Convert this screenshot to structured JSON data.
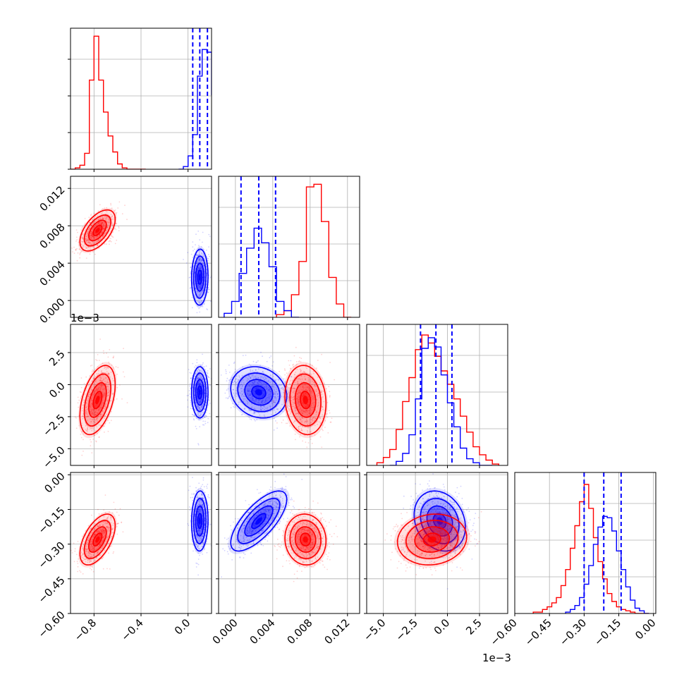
{
  "chart_data": {
    "type": "corner",
    "grid": true,
    "colors": {
      "series_a": "#ff0000",
      "series_b": "#0000ff"
    },
    "params": [
      {
        "range": [
          -1.0,
          0.2
        ],
        "ticks": [
          -0.8,
          -0.4,
          0.0
        ],
        "tick_labels": [
          "−0.8",
          "−0.4",
          "0.0"
        ],
        "scale_label": ""
      },
      {
        "range": [
          -0.0018,
          0.0133
        ],
        "ticks": [
          0.0,
          0.004,
          0.008,
          0.012
        ],
        "tick_labels": [
          "0.000",
          "0.004",
          "0.008",
          "0.012"
        ],
        "scale_label": ""
      },
      {
        "range": [
          -6.3,
          4.7
        ],
        "ticks": [
          -5.0,
          -2.5,
          0.0,
          2.5
        ],
        "tick_labels": [
          "−5.0",
          "−2.5",
          "0.0",
          "2.5"
        ],
        "scale_label": "1e−3"
      },
      {
        "range": [
          -0.6,
          0.01
        ],
        "ticks": [
          -0.6,
          -0.45,
          -0.3,
          -0.15,
          0.0
        ],
        "tick_labels": [
          "−0.60",
          "−0.45",
          "−0.30",
          "−0.15",
          "0.00"
        ],
        "scale_label": ""
      }
    ],
    "marginals": [
      {
        "hist_max": 1.0,
        "series_a": {
          "bins": [
            -1.0,
            -0.96,
            -0.92,
            -0.88,
            -0.84,
            -0.8,
            -0.76,
            -0.72,
            -0.68,
            -0.64,
            -0.6,
            -0.56,
            -0.52,
            -0.48,
            -0.44,
            -0.4,
            -0.36
          ],
          "counts": [
            0.0,
            0.01,
            0.03,
            0.12,
            0.67,
            1.0,
            0.67,
            0.43,
            0.25,
            0.13,
            0.04,
            0.01,
            0.0,
            0.0,
            0.0,
            0.0
          ]
        },
        "series_b": {
          "bins": [
            -0.08,
            -0.04,
            0.0,
            0.04,
            0.08,
            0.12,
            0.16,
            0.2,
            0.24,
            0.28
          ],
          "counts": [
            0.0,
            0.02,
            0.1,
            0.26,
            0.7,
            0.9,
            0.88,
            0.56,
            0.0
          ]
        },
        "quantiles_b": [
          0.04,
          0.1,
          0.165
        ]
      },
      {
        "hist_max": 1.0,
        "series_a": {
          "bins": [
            0.0044,
            0.0052,
            0.006,
            0.0068,
            0.0076,
            0.0084,
            0.0092,
            0.01,
            0.0108,
            0.0116,
            0.0124
          ],
          "counts": [
            0.02,
            0.05,
            0.17,
            0.42,
            0.98,
            1.0,
            0.72,
            0.3,
            0.1,
            0.0
          ]
        },
        "series_b": {
          "bins": [
            -0.0012,
            -0.0004,
            0.0004,
            0.0012,
            0.002,
            0.0028,
            0.0036,
            0.0044,
            0.0052,
            0.006,
            0.0068
          ],
          "counts": [
            0.03,
            0.12,
            0.33,
            0.52,
            0.67,
            0.56,
            0.38,
            0.12,
            0.05,
            0.0
          ]
        },
        "quantiles_b": [
          0.0006,
          0.0025,
          0.0043
        ]
      },
      {
        "hist_max": 1.0,
        "series_a": {
          "bins": [
            -5.5,
            -5.0,
            -4.5,
            -4.0,
            -3.5,
            -3.0,
            -2.5,
            -2.0,
            -1.5,
            -1.0,
            -0.5,
            0.0,
            0.5,
            1.0,
            1.5,
            2.0,
            2.5,
            3.0,
            3.5,
            4.0
          ],
          "counts": [
            0.02,
            0.06,
            0.12,
            0.27,
            0.48,
            0.66,
            0.87,
            0.98,
            0.92,
            0.82,
            0.71,
            0.61,
            0.5,
            0.37,
            0.25,
            0.14,
            0.08,
            0.04,
            0.01
          ]
        },
        "series_b": {
          "bins": [
            -4.5,
            -4.0,
            -3.5,
            -3.0,
            -2.5,
            -2.0,
            -1.5,
            -1.0,
            -0.5,
            0.0,
            0.5,
            1.0,
            1.5,
            2.0,
            2.5,
            3.0,
            3.5
          ],
          "counts": [
            0.0,
            0.03,
            0.09,
            0.23,
            0.5,
            0.88,
            0.96,
            0.89,
            0.68,
            0.47,
            0.29,
            0.13,
            0.05,
            0.02,
            0.0,
            0.0
          ]
        },
        "quantiles_b": [
          -2.1,
          -0.9,
          0.35
        ]
      },
      {
        "hist_max": 1.0,
        "series_a": {
          "bins": [
            -0.52,
            -0.5,
            -0.48,
            -0.46,
            -0.44,
            -0.42,
            -0.4,
            -0.38,
            -0.36,
            -0.34,
            -0.32,
            -0.3,
            -0.28,
            -0.26,
            -0.24,
            -0.22,
            -0.2,
            -0.18,
            -0.16,
            -0.14,
            -0.12,
            -0.1,
            -0.08,
            -0.06,
            -0.04,
            -0.02
          ],
          "counts": [
            0.01,
            0.01,
            0.03,
            0.05,
            0.08,
            0.12,
            0.21,
            0.33,
            0.49,
            0.66,
            0.84,
            0.97,
            0.79,
            0.57,
            0.39,
            0.26,
            0.15,
            0.09,
            0.05,
            0.03,
            0.02,
            0.01,
            0.0,
            0.0,
            0.0
          ]
        },
        "series_b": {
          "bins": [
            -0.38,
            -0.36,
            -0.34,
            -0.32,
            -0.3,
            -0.28,
            -0.26,
            -0.24,
            -0.22,
            -0.2,
            -0.18,
            -0.16,
            -0.14,
            -0.12,
            -0.1,
            -0.08,
            -0.06,
            -0.04,
            -0.02
          ],
          "counts": [
            0.01,
            0.03,
            0.06,
            0.12,
            0.22,
            0.36,
            0.52,
            0.65,
            0.73,
            0.72,
            0.62,
            0.47,
            0.33,
            0.2,
            0.1,
            0.04,
            0.02,
            0.0
          ]
        },
        "quantiles_b": [
          -0.3,
          -0.215,
          -0.14
        ]
      }
    ],
    "series_a_gauss": {
      "mean": [
        -0.77,
        0.0075,
        -1.2,
        -0.28
      ],
      "sd": [
        0.075,
        0.0011,
        1.35,
        0.055
      ],
      "corr": [
        [
          1.0,
          0.55,
          0.45,
          0.55
        ],
        [
          0.55,
          1.0,
          -0.1,
          -0.05
        ],
        [
          0.45,
          -0.1,
          1.0,
          0.1
        ],
        [
          0.55,
          -0.05,
          0.1,
          1.0
        ]
      ]
    },
    "series_b_gauss": {
      "mean": [
        0.1,
        0.0025,
        -0.6,
        -0.2
      ],
      "sd": [
        0.035,
        0.0015,
        1.0,
        0.065
      ],
      "corr": [
        [
          1.0,
          0.05,
          0.0,
          0.05
        ],
        [
          0.05,
          1.0,
          -0.15,
          0.72
        ],
        [
          0.0,
          -0.15,
          1.0,
          -0.2
        ],
        [
          0.05,
          0.72,
          -0.2,
          1.0
        ]
      ]
    }
  }
}
